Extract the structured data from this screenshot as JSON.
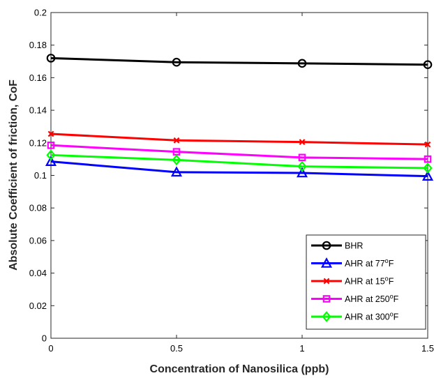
{
  "chart_data": {
    "type": "line",
    "xlabel": "Concentration of Nanosilica  (ppb)",
    "ylabel": "Absolute Coefficient of friction, CoF",
    "x": [
      0,
      0.5,
      1,
      1.5
    ],
    "xlim": [
      0,
      1.5
    ],
    "ylim": [
      0,
      0.2
    ],
    "xticks": [
      "0",
      "0.5",
      "1",
      "1.5"
    ],
    "yticks": [
      "0",
      "0.02",
      "0.04",
      "0.06",
      "0.08",
      "0.1",
      "0.12",
      "0.14",
      "0.16",
      "0.18",
      "0.2"
    ],
    "grid": false,
    "legend_position": "bottom-right",
    "series": [
      {
        "name": "BHR",
        "marker": "circle",
        "color": "#000000",
        "values": [
          0.172,
          0.1695,
          0.1688,
          0.168
        ]
      },
      {
        "name": "AHR at 77",
        "sup": "o",
        "unit": "F",
        "marker": "triangle",
        "color": "#0000ff",
        "values": [
          0.1085,
          0.102,
          0.1015,
          0.0995
        ]
      },
      {
        "name": "AHR at 15",
        "sup": "o",
        "unit": "F",
        "marker": "x",
        "color": "#ff0000",
        "values": [
          0.1255,
          0.1215,
          0.1205,
          0.119
        ]
      },
      {
        "name": "AHR at 250",
        "sup": "o",
        "unit": "F",
        "marker": "square",
        "color": "#ff00ff",
        "values": [
          0.1185,
          0.1145,
          0.111,
          0.11
        ]
      },
      {
        "name": "AHR at 300",
        "sup": "o",
        "unit": "F",
        "marker": "diamond",
        "color": "#00ff00",
        "values": [
          0.1125,
          0.1095,
          0.1055,
          0.1045
        ]
      }
    ]
  }
}
